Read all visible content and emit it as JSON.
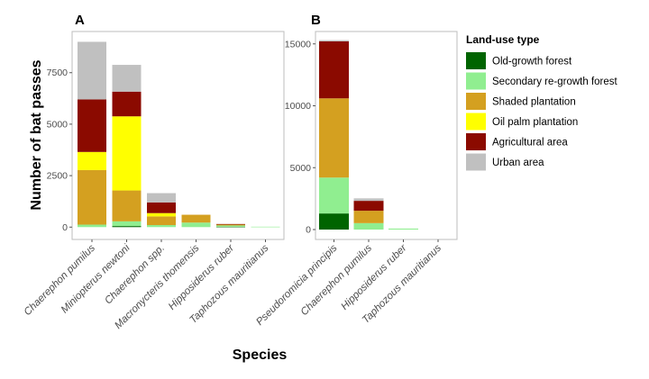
{
  "chart_data": [
    {
      "panel": "A",
      "type": "bar",
      "stacked": true,
      "categories": [
        "Chaerephon pumilus",
        "Miniopterus newtoni",
        "Chaerephon spp.",
        "Macronycteris thomensis",
        "Hipposiderus ruber",
        "Taphozous mauritianus"
      ],
      "series": [
        {
          "name": "Old-growth forest",
          "values": [
            0,
            50,
            0,
            0,
            20,
            0
          ]
        },
        {
          "name": "Secondary re-growth forest",
          "values": [
            120,
            230,
            100,
            220,
            60,
            20
          ]
        },
        {
          "name": "Shaded plantation",
          "values": [
            2650,
            1500,
            420,
            380,
            50,
            0
          ]
        },
        {
          "name": "Oil palm plantation",
          "values": [
            880,
            3600,
            160,
            0,
            0,
            0
          ]
        },
        {
          "name": "Agricultural area",
          "values": [
            2550,
            1200,
            520,
            0,
            20,
            0
          ]
        },
        {
          "name": "Urban area",
          "values": [
            2800,
            1300,
            450,
            0,
            0,
            0
          ]
        }
      ],
      "yticks": [
        0,
        2500,
        5000,
        7500
      ],
      "ylim": [
        -600,
        9500
      ]
    },
    {
      "panel": "B",
      "type": "bar",
      "stacked": true,
      "categories": [
        "Pseudoromicia principis",
        "Chaerephon pumilus",
        "Hipposiderus ruber",
        "Taphozous mauritianus"
      ],
      "series": [
        {
          "name": "Old-growth forest",
          "values": [
            1300,
            0,
            0,
            0
          ]
        },
        {
          "name": "Secondary re-growth forest",
          "values": [
            2900,
            520,
            80,
            0
          ]
        },
        {
          "name": "Shaded plantation",
          "values": [
            6400,
            1000,
            0,
            0
          ]
        },
        {
          "name": "Oil palm plantation",
          "values": [
            0,
            0,
            0,
            0
          ]
        },
        {
          "name": "Agricultural area",
          "values": [
            4600,
            800,
            0,
            0
          ]
        },
        {
          "name": "Urban area",
          "values": [
            100,
            200,
            0,
            0
          ]
        }
      ],
      "yticks": [
        0,
        5000,
        10000,
        15000
      ],
      "ylim": [
        -800,
        16000
      ]
    }
  ],
  "labels": {
    "panel_a": "A",
    "panel_b": "B",
    "ylabel": "Number of bat passes",
    "xlabel": "Species",
    "legend_title": "Land-use type"
  },
  "legend": [
    {
      "name": "Old-growth forest",
      "color": "#006400"
    },
    {
      "name": "Secondary re-growth forest",
      "color": "#90ee90"
    },
    {
      "name": "Shaded plantation",
      "color": "#d4a020"
    },
    {
      "name": "Oil palm plantation",
      "color": "#ffff00"
    },
    {
      "name": "Agricultural area",
      "color": "#8b0a00"
    },
    {
      "name": "Urban area",
      "color": "#c0c0c0"
    }
  ]
}
